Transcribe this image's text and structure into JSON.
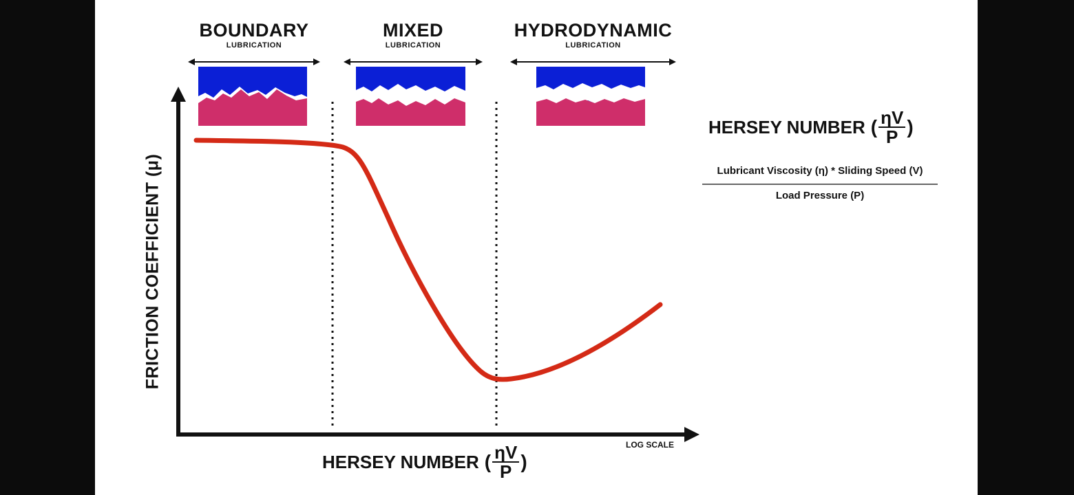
{
  "regimes": [
    {
      "title": "BOUNDARY",
      "subtitle": "LUBRICATION"
    },
    {
      "title": "MIXED",
      "subtitle": "LUBRICATION"
    },
    {
      "title": "HYDRODYNAMIC",
      "subtitle": "LUBRICATION"
    }
  ],
  "axes": {
    "y_label": "FRICTION COEFFICIENT (μ)",
    "x_scale_note": "LOG SCALE"
  },
  "hersey": {
    "label": "HERSEY NUMBER",
    "open_paren": "(",
    "close_paren": ")",
    "numerator": "ηV",
    "denominator": "P"
  },
  "definition": {
    "numerator": "Lubricant Viscosity (η) * Sliding Speed (V)",
    "denominator": "Load Pressure (P)"
  },
  "colors": {
    "curve": "#d42a16",
    "top_surface": "#0b1fd6",
    "bottom_surface": "#cf2e6a",
    "axis": "#111111"
  }
}
